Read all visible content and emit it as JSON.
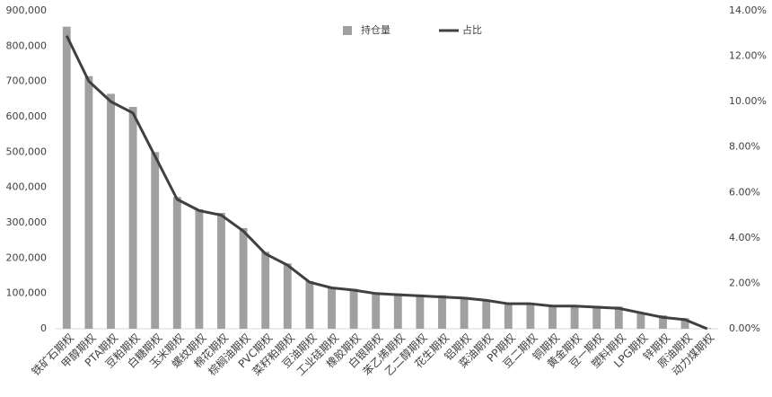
{
  "chart_data": {
    "type": "bar_line",
    "categories": [
      "铁矿石期权",
      "甲醇期权",
      "PTA期权",
      "豆粕期权",
      "白糖期权",
      "玉米期权",
      "螺纹期权",
      "棉花期权",
      "棕榈油期权",
      "PVC期权",
      "菜籽粕期权",
      "豆油期权",
      "工业硅期权",
      "橡胶期权",
      "白银期权",
      "苯乙烯期权",
      "乙二醇期权",
      "花生期权",
      "铝期权",
      "菜油期权",
      "PP期权",
      "豆二期权",
      "铜期权",
      "黄金期权",
      "豆一期权",
      "塑料期权",
      "LPG期权",
      "锌期权",
      "原油期权",
      "动力煤期权"
    ],
    "series": [
      {
        "name": "持仓量",
        "type": "bar",
        "color": "#a0a0a0",
        "values": [
          855000,
          715000,
          665000,
          628000,
          500000,
          373000,
          338000,
          328000,
          285000,
          218000,
          185000,
          135000,
          118000,
          113000,
          102000,
          100000,
          97000,
          95000,
          90000,
          82000,
          73000,
          72000,
          67000,
          67000,
          65000,
          63000,
          45000,
          38000,
          30000,
          2000
        ]
      },
      {
        "name": "占比",
        "type": "line",
        "axis": "y2",
        "color": "#404040",
        "values": [
          12.9,
          10.9,
          10.0,
          9.5,
          7.6,
          5.7,
          5.2,
          5.0,
          4.3,
          3.3,
          2.8,
          2.05,
          1.8,
          1.7,
          1.55,
          1.5,
          1.45,
          1.4,
          1.35,
          1.25,
          1.1,
          1.1,
          1.0,
          1.0,
          0.95,
          0.9,
          0.7,
          0.5,
          0.4,
          0.0
        ]
      }
    ],
    "ylim": [
      0,
      900000
    ],
    "yticks": [
      0,
      {
        "value": 100000,
        "label": "100,000"
      },
      {
        "value": 200000,
        "label": "200,000"
      },
      {
        "value": 300000,
        "label": "300,000"
      },
      {
        "value": 400000,
        "label": "400,000"
      },
      {
        "value": 500000,
        "label": "500,000"
      },
      {
        "value": 600000,
        "label": "600,000"
      },
      {
        "value": 700000,
        "label": "700,000"
      },
      {
        "value": 800000,
        "label": "800,000"
      },
      {
        "value": 900000,
        "label": "900,000"
      }
    ],
    "y2lim": [
      0,
      14
    ],
    "y2ticks": [
      {
        "value": 0,
        "label": "0.00%"
      },
      {
        "value": 2,
        "label": "2.00%"
      },
      {
        "value": 4,
        "label": "4.00%"
      },
      {
        "value": 6,
        "label": "6.00%"
      },
      {
        "value": 8,
        "label": "8.00%"
      },
      {
        "value": 10,
        "label": "10.00%"
      },
      {
        "value": 12,
        "label": "12.00%"
      },
      {
        "value": 14,
        "label": "14.00%"
      }
    ],
    "legend": "top"
  }
}
